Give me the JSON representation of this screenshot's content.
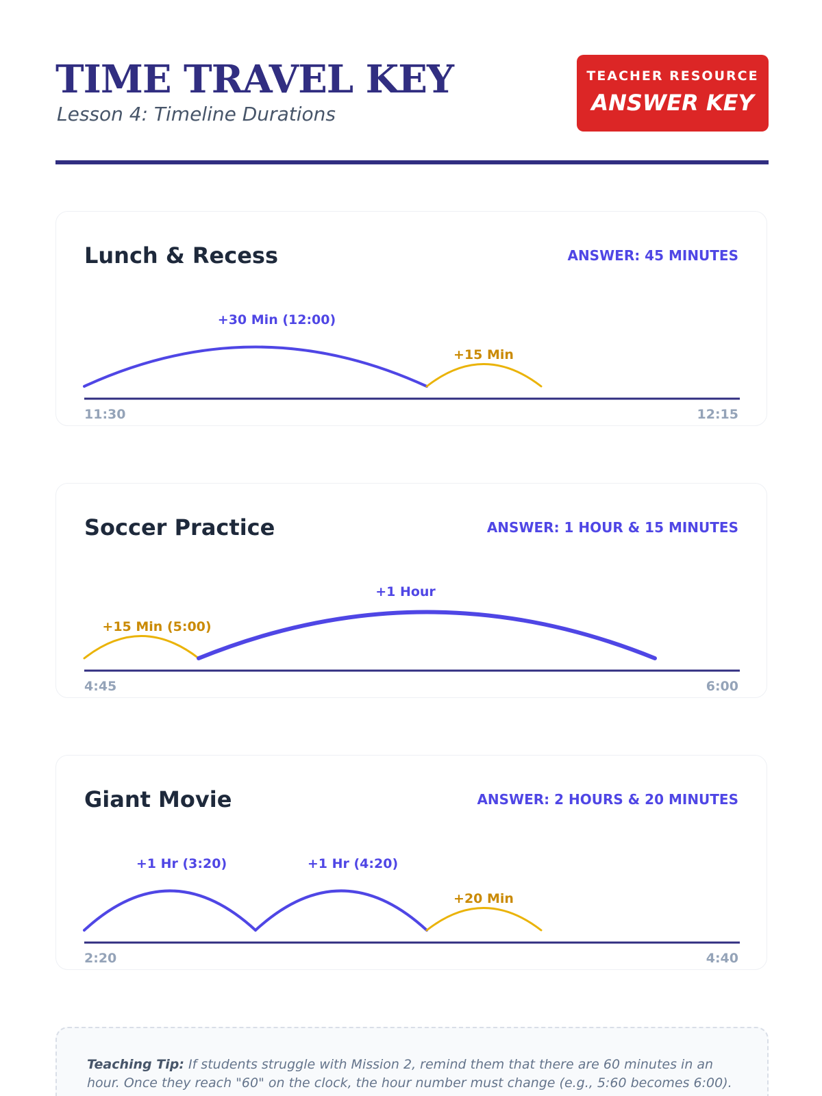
{
  "header": {
    "title": "TIME TRAVEL KEY",
    "subtitle": "Lesson 4: Timeline Durations",
    "badge_top": "TEACHER RESOURCE",
    "badge_bottom": "ANSWER KEY"
  },
  "colors": {
    "primary": "#312e81",
    "hour_jump": "#4f46e5",
    "minute_jump": "#eab308",
    "minute_label": "#ca8a04",
    "badge": "#dc2626"
  },
  "timelines": [
    {
      "title": "Lunch & Recess",
      "answer": "ANSWER: 45 MINUTES",
      "start": "11:30",
      "end": "12:15",
      "jumps": [
        {
          "label": "+30 Min (12:00)",
          "type": "hour",
          "minutes": 30
        },
        {
          "label": "+15 Min",
          "type": "minute",
          "minutes": 15
        }
      ]
    },
    {
      "title": "Soccer Practice",
      "answer": "ANSWER: 1 HOUR & 15 MINUTES",
      "start": "4:45",
      "end": "6:00",
      "jumps": [
        {
          "label": "+15 Min (5:00)",
          "type": "minute",
          "minutes": 15
        },
        {
          "label": "+1 Hour",
          "type": "hour",
          "minutes": 60
        }
      ]
    },
    {
      "title": "Giant Movie",
      "answer": "ANSWER: 2 HOURS & 20 MINUTES",
      "start": "2:20",
      "end": "4:40",
      "jumps": [
        {
          "label": "+1 Hr (3:20)",
          "type": "hour",
          "minutes": 60
        },
        {
          "label": "+1 Hr (4:20)",
          "type": "hour",
          "minutes": 60
        },
        {
          "label": "+20 Min",
          "type": "minute",
          "minutes": 20
        }
      ]
    }
  ],
  "tip": {
    "label": "Teaching Tip:",
    "text": " If students struggle with Mission 2, remind them that there are 60 minutes in an hour. Once they reach \"60\" on the clock, the hour number must change (e.g., 5:60 becomes 6:00)."
  }
}
